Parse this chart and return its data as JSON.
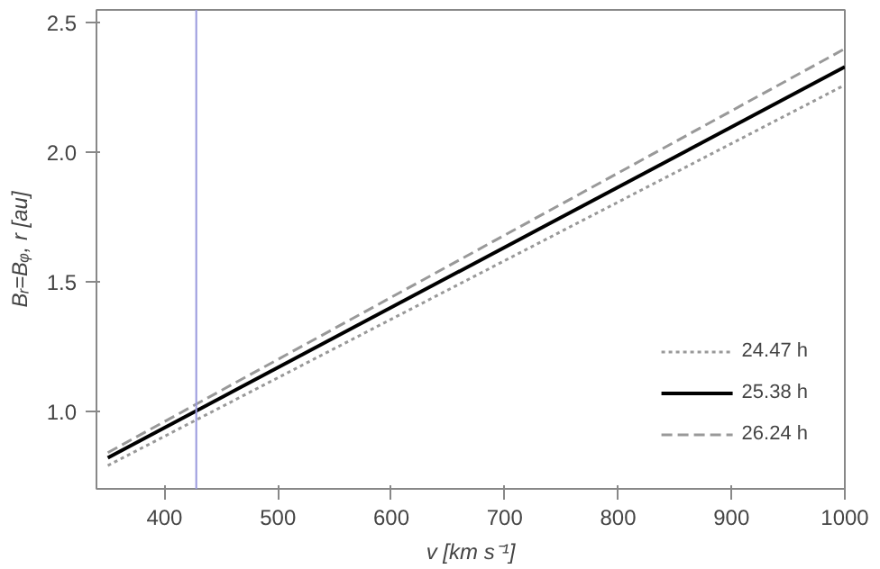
{
  "chart_data": {
    "type": "line",
    "xlabel": "v [km s⁻¹]",
    "ylabel": "Bᵣ=Bᵩ, r [au]",
    "x": [
      350,
      1000
    ],
    "series": [
      {
        "name": "24.47 h",
        "color": "#999999",
        "line_style": "dotted",
        "values": [
          0.79,
          2.26
        ]
      },
      {
        "name": "25.38 h",
        "color": "#000000",
        "line_style": "solid",
        "values": [
          0.82,
          2.33
        ]
      },
      {
        "name": "26.24 h",
        "color": "#999999",
        "line_style": "dashed",
        "values": [
          0.84,
          2.4
        ]
      }
    ],
    "xlim": [
      340,
      1000
    ],
    "ylim": [
      0.7,
      2.55
    ],
    "xticks": [
      400,
      500,
      600,
      700,
      800,
      900,
      1000
    ],
    "yticks": [
      {
        "value": 1.0,
        "label": "1.0"
      },
      {
        "value": 1.5,
        "label": "1.5"
      },
      {
        "value": 2.0,
        "label": "2.0"
      },
      {
        "value": 2.5,
        "label": "2.5"
      }
    ],
    "ref_lines": [
      {
        "axis": "x",
        "value": 428,
        "color": "#9999dd"
      }
    ],
    "grid": false,
    "legend": "bottom right"
  }
}
